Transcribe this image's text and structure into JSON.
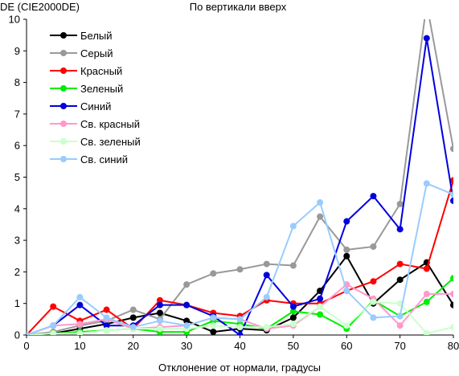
{
  "chart_data": {
    "type": "line",
    "title": "По вертикали вверх",
    "xlabel": "Отклонение от нормали, градусы",
    "ylabel": "DE (CIE2000DE)",
    "x": [
      0,
      5,
      10,
      15,
      20,
      25,
      30,
      35,
      40,
      45,
      50,
      55,
      60,
      65,
      70,
      75,
      80
    ],
    "xlim": [
      0,
      80
    ],
    "ylim": [
      0,
      10
    ],
    "xticks": [
      "0",
      "10",
      "20",
      "30",
      "40",
      "50",
      "60",
      "70",
      "80"
    ],
    "yticks": [
      "0",
      "1",
      "2",
      "3",
      "4",
      "5",
      "6",
      "7",
      "8",
      "9",
      "10"
    ],
    "grid": false,
    "legend_position": "top-left",
    "series": [
      {
        "name": "Белый",
        "color": "#000000",
        "values": [
          0,
          0.05,
          0.2,
          0.35,
          0.55,
          0.7,
          0.45,
          0.1,
          0.2,
          0.15,
          0.55,
          1.4,
          2.5,
          1.0,
          1.75,
          2.3,
          0.95
        ]
      },
      {
        "name": "Серый",
        "color": "#999999",
        "values": [
          0,
          0.1,
          0.3,
          0.45,
          0.8,
          0.5,
          1.6,
          1.95,
          2.08,
          2.25,
          2.2,
          3.75,
          2.7,
          2.8,
          4.15,
          10.5,
          5.9
        ]
      },
      {
        "name": "Красный",
        "color": "#ff0000",
        "values": [
          0,
          0.9,
          0.45,
          0.8,
          0.2,
          1.1,
          0.95,
          0.7,
          0.6,
          1.1,
          1.0,
          1.0,
          1.4,
          1.7,
          2.25,
          2.1,
          4.9
        ]
      },
      {
        "name": "Зеленый",
        "color": "#00ee00",
        "values": [
          0,
          0.05,
          0.1,
          0.15,
          0.2,
          0.1,
          0.1,
          0.45,
          0.35,
          0.2,
          0.75,
          0.65,
          0.2,
          1.1,
          0.6,
          1.05,
          1.8
        ]
      },
      {
        "name": "Синий",
        "color": "#0000dd",
        "values": [
          0,
          0.3,
          0.95,
          0.3,
          0.3,
          0.95,
          0.95,
          0.6,
          0.0,
          1.9,
          0.9,
          1.15,
          3.6,
          4.4,
          3.35,
          9.4,
          4.25
        ]
      },
      {
        "name": "Св. красный",
        "color": "#ff99cc",
        "values": [
          0,
          0.3,
          0.35,
          0.5,
          0.2,
          0.25,
          0.3,
          0.55,
          0.5,
          0.2,
          0.3,
          0.9,
          1.6,
          1.15,
          0.3,
          1.3,
          1.3
        ]
      },
      {
        "name": "Св. зеленый",
        "color": "#ccffcc",
        "values": [
          0,
          0.05,
          0.05,
          0.15,
          0.2,
          0.2,
          0.2,
          0.3,
          0.25,
          0.25,
          0.35,
          0.9,
          0.3,
          1.05,
          1.0,
          0.05,
          0.25
        ]
      },
      {
        "name": "Св. синий",
        "color": "#99ccff",
        "values": [
          0,
          0.3,
          1.2,
          0.55,
          0.25,
          0.45,
          0.3,
          0.55,
          0.5,
          1.2,
          3.45,
          4.2,
          1.4,
          0.55,
          0.6,
          4.8,
          4.45
        ]
      }
    ]
  }
}
